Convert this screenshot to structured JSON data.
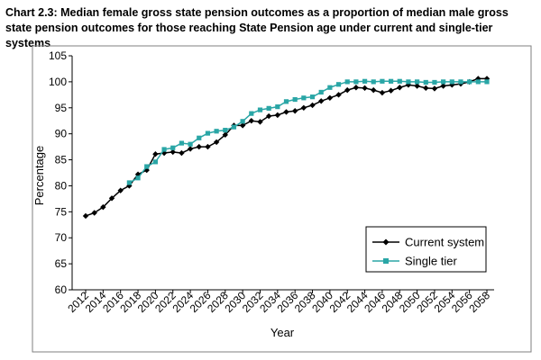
{
  "chart_data": {
    "type": "line",
    "title": "Chart 2.3: Median female gross state pension outcomes as a proportion of median male gross state pension outcomes for those reaching State Pension age under current and single-tier systems",
    "xlabel": "Year",
    "ylabel": "Percentage",
    "ylim": [
      60,
      105
    ],
    "xlim": [
      2012,
      2058
    ],
    "yticks": [
      60,
      65,
      70,
      75,
      80,
      85,
      90,
      95,
      100,
      105
    ],
    "xticks": [
      "2012",
      "2014",
      "2016",
      "2018",
      "2020",
      "2022",
      "2024",
      "2026",
      "2028",
      "2030",
      "2032",
      "2034",
      "2036",
      "2038",
      "2040",
      "2042",
      "2044",
      "2046",
      "2048",
      "2050",
      "2052",
      "2054",
      "2056",
      "2058"
    ],
    "grid": false,
    "legend_position": "bottom-right",
    "series": [
      {
        "name": "Current system",
        "color": "#000000",
        "marker": "diamond",
        "x": [
          2012,
          2013,
          2014,
          2015,
          2016,
          2017,
          2018,
          2019,
          2020,
          2021,
          2022,
          2023,
          2024,
          2025,
          2026,
          2027,
          2028,
          2029,
          2030,
          2031,
          2032,
          2033,
          2034,
          2035,
          2036,
          2037,
          2038,
          2039,
          2040,
          2041,
          2042,
          2043,
          2044,
          2045,
          2046,
          2047,
          2048,
          2049,
          2050,
          2051,
          2052,
          2053,
          2054,
          2055,
          2056,
          2057,
          2058
        ],
        "values": [
          74.2,
          74.8,
          75.9,
          77.6,
          79.1,
          80.0,
          82.2,
          83.0,
          86.1,
          86.3,
          86.5,
          86.3,
          87.1,
          87.5,
          87.5,
          88.4,
          89.8,
          91.6,
          91.6,
          92.5,
          92.3,
          93.4,
          93.6,
          94.2,
          94.4,
          95.0,
          95.5,
          96.3,
          96.9,
          97.5,
          98.4,
          98.9,
          98.8,
          98.4,
          97.9,
          98.3,
          98.9,
          99.4,
          99.2,
          98.8,
          98.7,
          99.2,
          99.4,
          99.6,
          100.0,
          100.6,
          100.6
        ]
      },
      {
        "name": "Single tier",
        "color": "#2aa6a6",
        "marker": "square",
        "x": [
          2017,
          2018,
          2019,
          2020,
          2021,
          2022,
          2023,
          2024,
          2025,
          2026,
          2027,
          2028,
          2029,
          2030,
          2031,
          2032,
          2033,
          2034,
          2035,
          2036,
          2037,
          2038,
          2039,
          2040,
          2041,
          2042,
          2043,
          2044,
          2045,
          2046,
          2047,
          2048,
          2049,
          2050,
          2051,
          2052,
          2053,
          2054,
          2055,
          2056,
          2057,
          2058
        ],
        "values": [
          80.6,
          81.5,
          83.7,
          84.6,
          87.0,
          87.3,
          88.2,
          88.0,
          89.2,
          90.1,
          90.5,
          90.7,
          91.3,
          92.4,
          93.9,
          94.6,
          94.9,
          95.2,
          96.2,
          96.6,
          96.9,
          97.1,
          98.0,
          98.9,
          99.5,
          100.0,
          100.0,
          100.1,
          100.0,
          100.1,
          100.1,
          100.1,
          100.0,
          100.0,
          99.9,
          99.9,
          100.0,
          100.0,
          100.0,
          100.0,
          100.0,
          100.0
        ]
      }
    ]
  }
}
